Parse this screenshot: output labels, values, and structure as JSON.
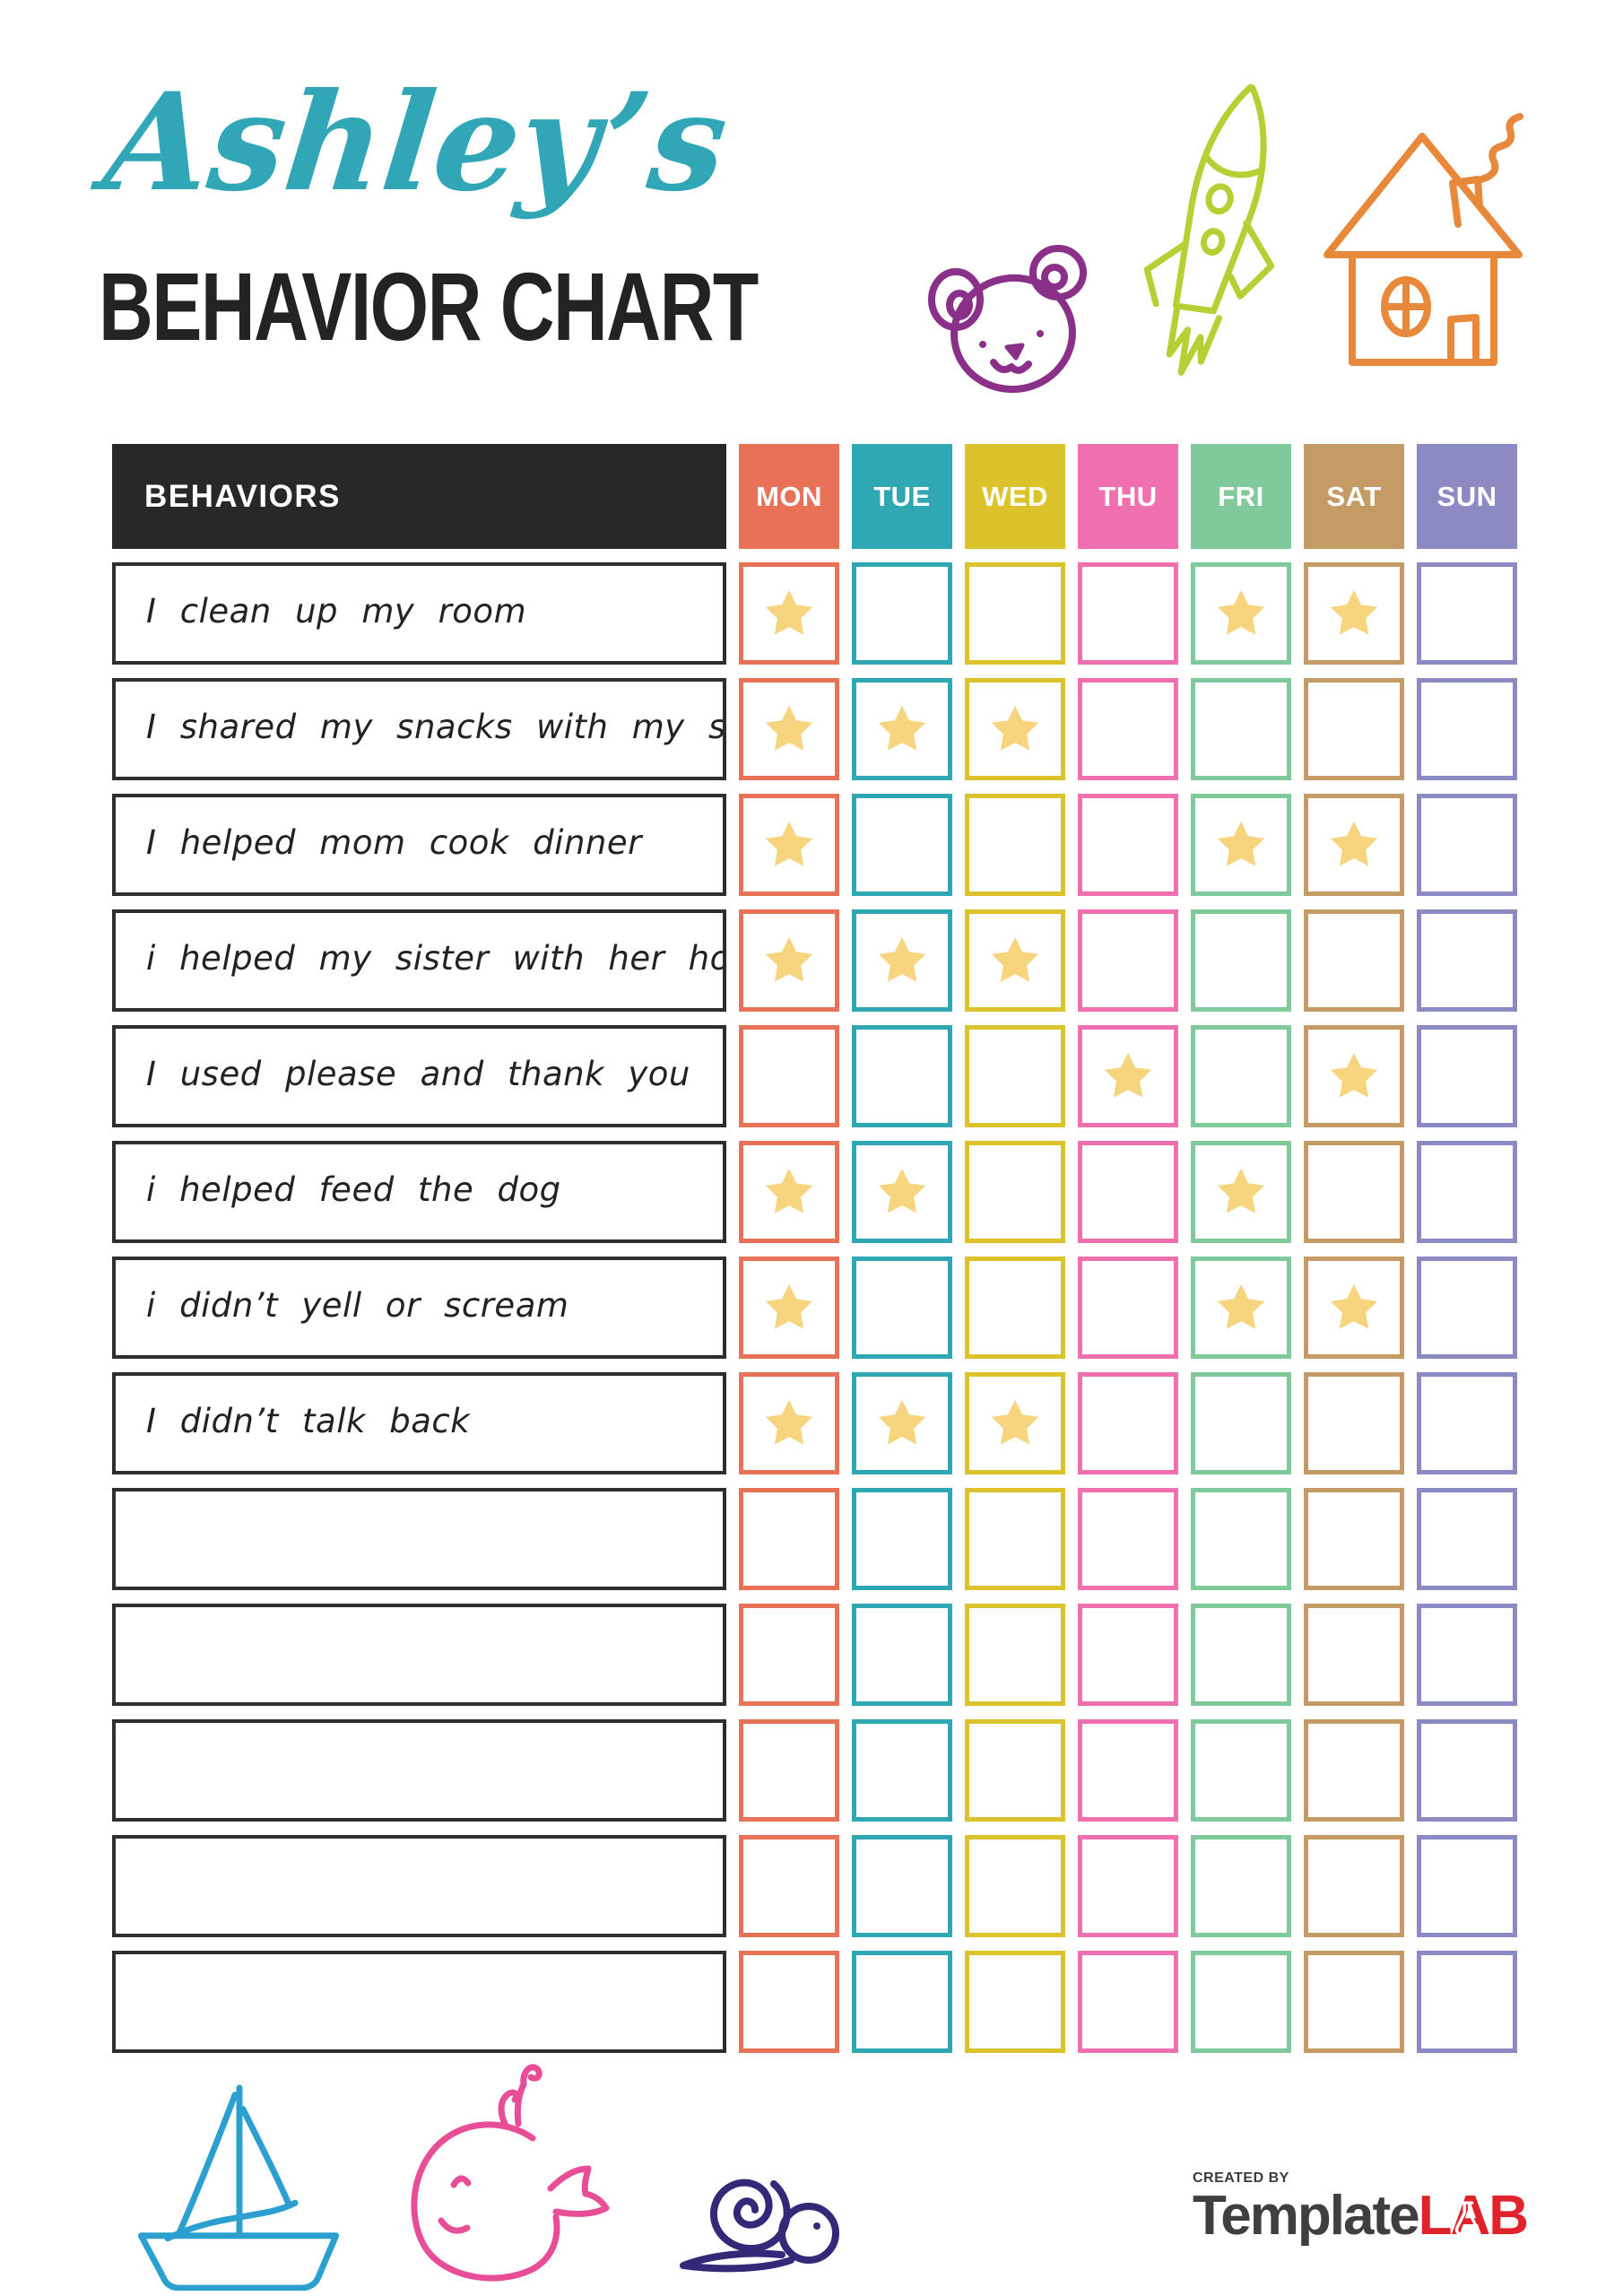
{
  "title": {
    "name": "Ashley’s",
    "main": "BEHAVIOR CHART"
  },
  "table": {
    "behaviors_header": "BEHAVIORS",
    "days": [
      {
        "label": "MON",
        "color": "#E87258"
      },
      {
        "label": "TUE",
        "color": "#2FA8B4"
      },
      {
        "label": "WED",
        "color": "#DCC32B"
      },
      {
        "label": "THU",
        "color": "#F06FAE"
      },
      {
        "label": "FRI",
        "color": "#7FC99B"
      },
      {
        "label": "SAT",
        "color": "#C49B64"
      },
      {
        "label": "SUN",
        "color": "#8B8AC3"
      }
    ],
    "rows": [
      {
        "behavior": "I clean up my room",
        "stars": [
          1,
          0,
          0,
          0,
          1,
          1,
          0
        ]
      },
      {
        "behavior": "I shared my snacks with my sister",
        "stars": [
          1,
          1,
          1,
          0,
          0,
          0,
          0
        ]
      },
      {
        "behavior": "I helped mom cook dinner",
        "stars": [
          1,
          0,
          0,
          0,
          1,
          1,
          0
        ]
      },
      {
        "behavior": "i helped my sister with her homework",
        "stars": [
          1,
          1,
          1,
          0,
          0,
          0,
          0
        ]
      },
      {
        "behavior": "I used please and thank you",
        "stars": [
          0,
          0,
          0,
          1,
          0,
          1,
          0
        ]
      },
      {
        "behavior": "i helped feed the dog",
        "stars": [
          1,
          1,
          0,
          0,
          1,
          0,
          0
        ]
      },
      {
        "behavior": "i didn’t yell or scream",
        "stars": [
          1,
          0,
          0,
          0,
          1,
          1,
          0
        ]
      },
      {
        "behavior": "I didn’t talk back",
        "stars": [
          1,
          1,
          1,
          0,
          0,
          0,
          0
        ]
      },
      {
        "behavior": "",
        "stars": [
          0,
          0,
          0,
          0,
          0,
          0,
          0
        ]
      },
      {
        "behavior": "",
        "stars": [
          0,
          0,
          0,
          0,
          0,
          0,
          0
        ]
      },
      {
        "behavior": "",
        "stars": [
          0,
          0,
          0,
          0,
          0,
          0,
          0
        ]
      },
      {
        "behavior": "",
        "stars": [
          0,
          0,
          0,
          0,
          0,
          0,
          0
        ]
      },
      {
        "behavior": "",
        "stars": [
          0,
          0,
          0,
          0,
          0,
          0,
          0
        ]
      }
    ]
  },
  "colors": {
    "title_accent": "#30A6B6",
    "heading_text": "#232323",
    "table_header_bg": "#282828",
    "star": "#F7D47E",
    "bear": "#8B3088",
    "rocket": "#B5CF35",
    "house": "#E8883B",
    "sailboat": "#2A9FD0",
    "whale": "#E84D97",
    "snail": "#322A78"
  },
  "footer_logo": {
    "created_by": "CREATED BY",
    "brand_name": "Template",
    "brand_suffix": "LAB",
    "brand_name_color": "#3F3F3F",
    "brand_suffix_color": "#E0222A"
  }
}
